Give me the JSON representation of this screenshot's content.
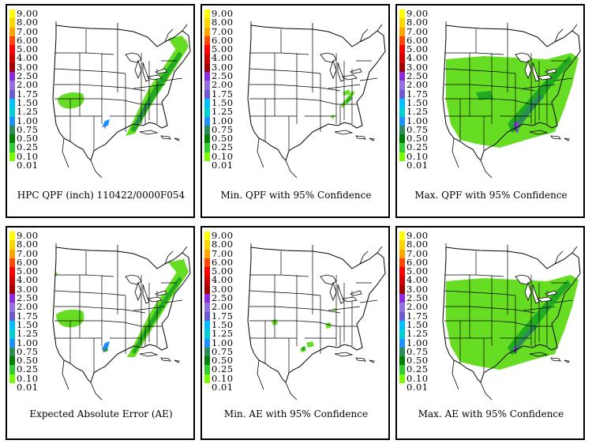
{
  "legend": {
    "levels": [
      "9.00",
      "8.00",
      "7.00",
      "6.00",
      "5.00",
      "4.00",
      "3.00",
      "2.50",
      "2.00",
      "1.75",
      "1.50",
      "1.25",
      "1.00",
      "0.75",
      "0.50",
      "0.25",
      "0.10",
      "0.01"
    ],
    "colors": [
      "#ffff00",
      "#ffd700",
      "#ffa500",
      "#ff4500",
      "#ff0000",
      "#d00000",
      "#a00000",
      "#8a2be2",
      "#9370db",
      "#6a5acd",
      "#00bfff",
      "#00ced1",
      "#1e90ff",
      "#2e8b57",
      "#008000",
      "#32cd32",
      "#7cfc00",
      "#ffffff"
    ]
  },
  "panels": [
    {
      "id": "qpf",
      "caption": "HPC QPF (inch) 110422/0000F054"
    },
    {
      "id": "min-qpf",
      "caption": "Min. QPF with 95% Confidence"
    },
    {
      "id": "max-qpf",
      "caption": "Max. QPF with 95% Confidence"
    },
    {
      "id": "ae",
      "caption": "Expected Absolute Error (AE)"
    },
    {
      "id": "min-ae",
      "caption": "Min. AE with 95% Confidence"
    },
    {
      "id": "max-ae",
      "caption": "Max. AE with 95% Confidence"
    }
  ]
}
